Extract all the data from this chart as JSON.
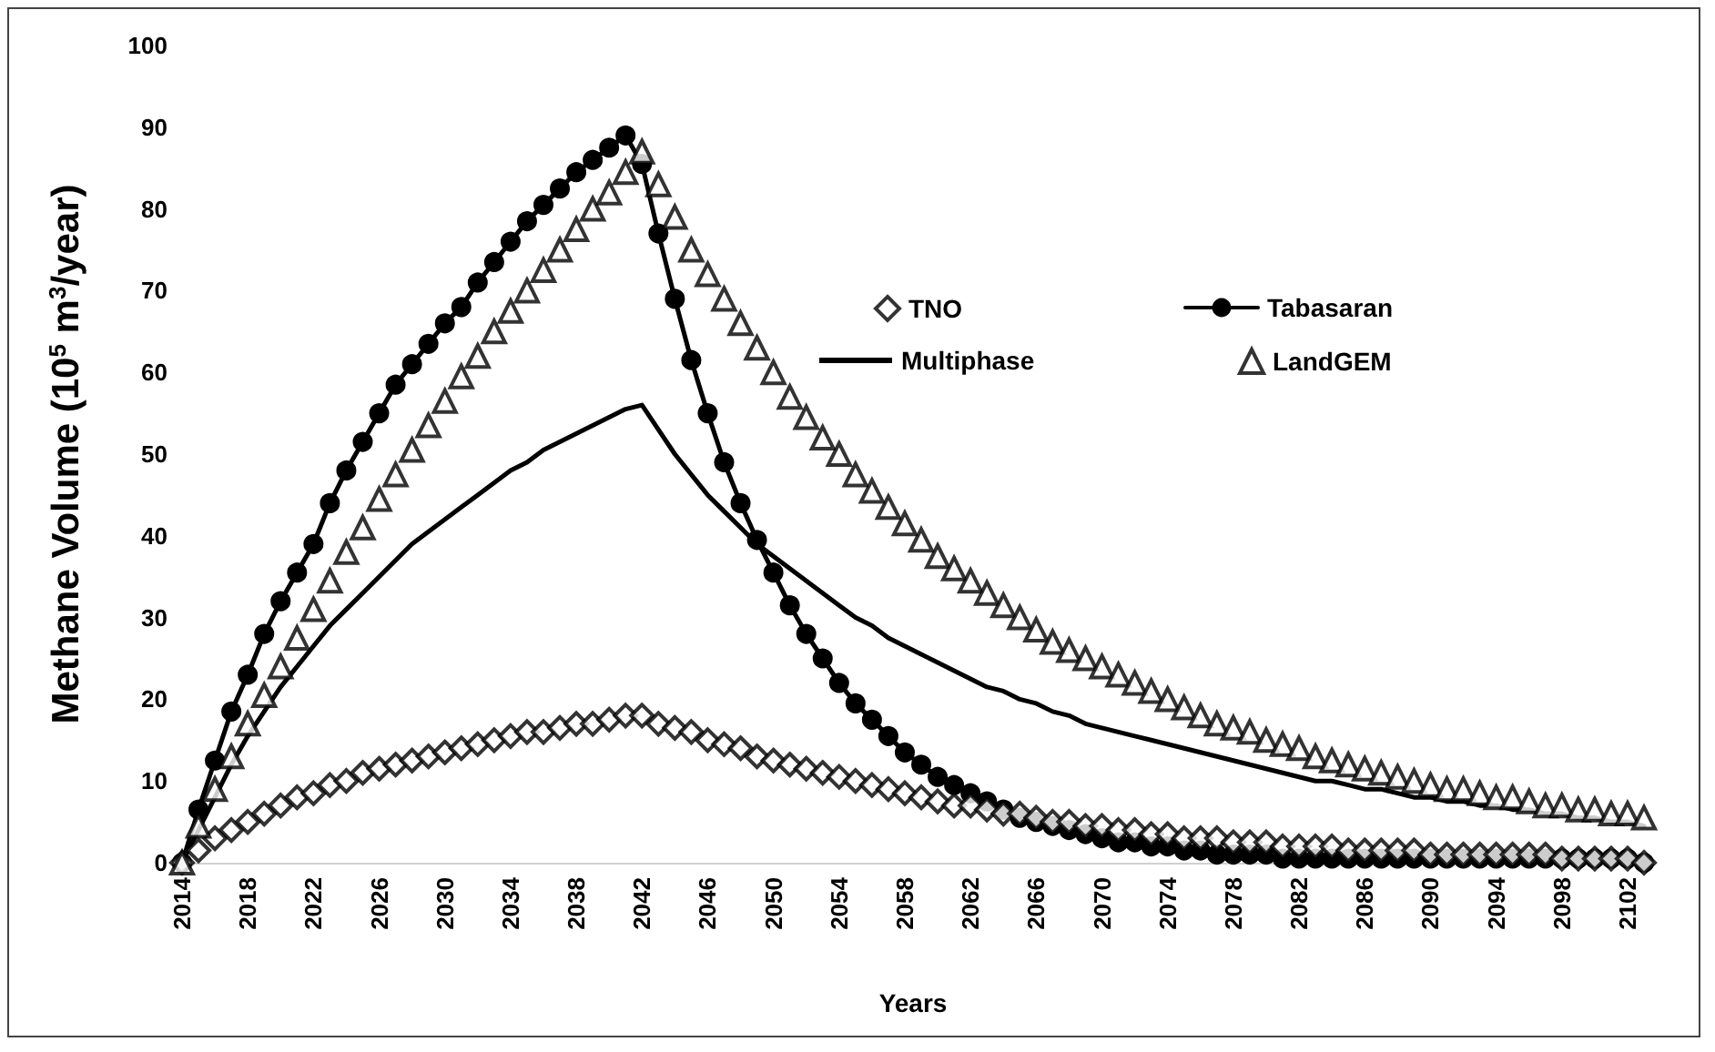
{
  "chart_data": {
    "type": "line",
    "xlabel": "Years",
    "ylabel": "Methane Volume (10$^{5}$ m$^{3}$/year)",
    "categories": [
      "2014",
      null,
      null,
      null,
      "2018",
      null,
      null,
      null,
      "2022",
      null,
      null,
      null,
      "2026",
      null,
      null,
      null,
      "2030",
      null,
      null,
      null,
      "2034",
      null,
      null,
      null,
      "2038",
      null,
      null,
      null,
      "2042",
      null,
      null,
      null,
      "2046",
      null,
      null,
      null,
      "2050",
      null,
      null,
      null,
      "2054",
      null,
      null,
      null,
      "2058",
      null,
      null,
      null,
      "2062",
      null,
      null,
      null,
      "2066",
      null,
      null,
      null,
      "2070",
      null,
      null,
      null,
      "2074",
      null,
      null,
      null,
      "2078",
      null,
      null,
      null,
      "2082",
      null,
      null,
      null,
      "2086",
      null,
      null,
      null,
      "2090",
      null,
      null,
      null,
      "2094",
      null,
      null,
      null,
      "2098",
      null,
      null,
      null,
      "2102",
      null
    ],
    "ylim": [
      0,
      100
    ],
    "yticks": [
      0,
      10,
      20,
      30,
      40,
      50,
      60,
      70,
      80,
      90,
      100
    ],
    "grid": false,
    "legend": "top right",
    "series": [
      {
        "name": "TNO",
        "type": "scatter",
        "marker": "diamond",
        "color": "#000000",
        "values": [
          0,
          1.5,
          3,
          4,
          5,
          6,
          7,
          8,
          8.5,
          9.5,
          10,
          11,
          11.5,
          12,
          12.5,
          13,
          13.5,
          14,
          14.5,
          15,
          15.5,
          16,
          16,
          16.5,
          17,
          17,
          17.5,
          18,
          18,
          17,
          16.5,
          16,
          15,
          14.5,
          14,
          13,
          12.5,
          12,
          11.5,
          11,
          10.5,
          10,
          9.5,
          9,
          8.5,
          8,
          7.5,
          7,
          7,
          6.5,
          6,
          6,
          5.5,
          5,
          5,
          4.5,
          4.5,
          4,
          4,
          3.5,
          3.5,
          3,
          3,
          3,
          2.5,
          2.5,
          2.5,
          2,
          2,
          2,
          2,
          1.5,
          1.5,
          1.5,
          1.5,
          1.5,
          1,
          1,
          1,
          1,
          1,
          1,
          1,
          1,
          0.5,
          0.5,
          0.5,
          0.5,
          0.5,
          0
        ]
      },
      {
        "name": "Tabasaran",
        "type": "line",
        "marker": "circle",
        "color": "#000000",
        "values": [
          0,
          6.5,
          12.5,
          18.5,
          23,
          28,
          32,
          35.5,
          39,
          44,
          48,
          51.5,
          55,
          58.5,
          61,
          63.5,
          66,
          68,
          71,
          73.5,
          76,
          78.5,
          80.5,
          82.5,
          84.5,
          86,
          87.5,
          89,
          85.5,
          77,
          69,
          61.5,
          55,
          49,
          44,
          39.5,
          35.5,
          31.5,
          28,
          25,
          22,
          19.5,
          17.5,
          15.5,
          13.5,
          12,
          10.5,
          9.5,
          8.5,
          7.5,
          6.5,
          5.5,
          5,
          4.5,
          4,
          3.5,
          3,
          2.5,
          2.5,
          2,
          2,
          1.5,
          1.5,
          1,
          1,
          1,
          1,
          0.5,
          0.5,
          0.5,
          0.5,
          0.5,
          0.5,
          0.5,
          0.5,
          0.5,
          0.5,
          0.5,
          0.5,
          0.5,
          0.5,
          0.5,
          0.5,
          0.5,
          0.5,
          0.5,
          0.5,
          0.5,
          0.5,
          0
        ]
      },
      {
        "name": "Multiphase",
        "type": "line",
        "marker": "none",
        "color": "#000000",
        "values": [
          0,
          4,
          8,
          12,
          15.5,
          18.5,
          21.5,
          24,
          26.5,
          29,
          31,
          33,
          35,
          37,
          39,
          40.5,
          42,
          43.5,
          45,
          46.5,
          48,
          49,
          50.5,
          51.5,
          52.5,
          53.5,
          54.5,
          55.5,
          56,
          53,
          50,
          47.5,
          45,
          43,
          41,
          39,
          37.5,
          36,
          34.5,
          33,
          31.5,
          30,
          29,
          27.5,
          26.5,
          25.5,
          24.5,
          23.5,
          22.5,
          21.5,
          21,
          20,
          19.5,
          18.5,
          18,
          17,
          16.5,
          16,
          15.5,
          15,
          14.5,
          14,
          13.5,
          13,
          12.5,
          12,
          11.5,
          11,
          10.5,
          10,
          10,
          9.5,
          9,
          9,
          8.5,
          8,
          8,
          7.5,
          7.5,
          7,
          7,
          6.5,
          6.5,
          6,
          6,
          5.5,
          5.5,
          5,
          5,
          4.5
        ]
      },
      {
        "name": "LandGEM",
        "type": "scatter",
        "marker": "triangle",
        "color": "#000000",
        "values": [
          0,
          4.5,
          9,
          13,
          17,
          20.5,
          24,
          27.5,
          31,
          34.5,
          38,
          41,
          44.5,
          47.5,
          50.5,
          53.5,
          56.5,
          59.5,
          62,
          65,
          67.5,
          70,
          72.5,
          75,
          77.5,
          80,
          82,
          84.5,
          87,
          83,
          79,
          75,
          72,
          69,
          66,
          63,
          60,
          57,
          54.5,
          52,
          50,
          47.5,
          45.5,
          43.5,
          41.5,
          39.5,
          37.5,
          36,
          34.5,
          33,
          31.5,
          30,
          28.5,
          27,
          26,
          25,
          24,
          23,
          22,
          21,
          20,
          19,
          18,
          17,
          16.5,
          16,
          15,
          14.5,
          14,
          13,
          12.5,
          12,
          11.5,
          11,
          10.5,
          10,
          9.5,
          9,
          9,
          8.5,
          8,
          8,
          7.5,
          7,
          7,
          6.5,
          6.5,
          6,
          6,
          5.5
        ]
      }
    ]
  }
}
